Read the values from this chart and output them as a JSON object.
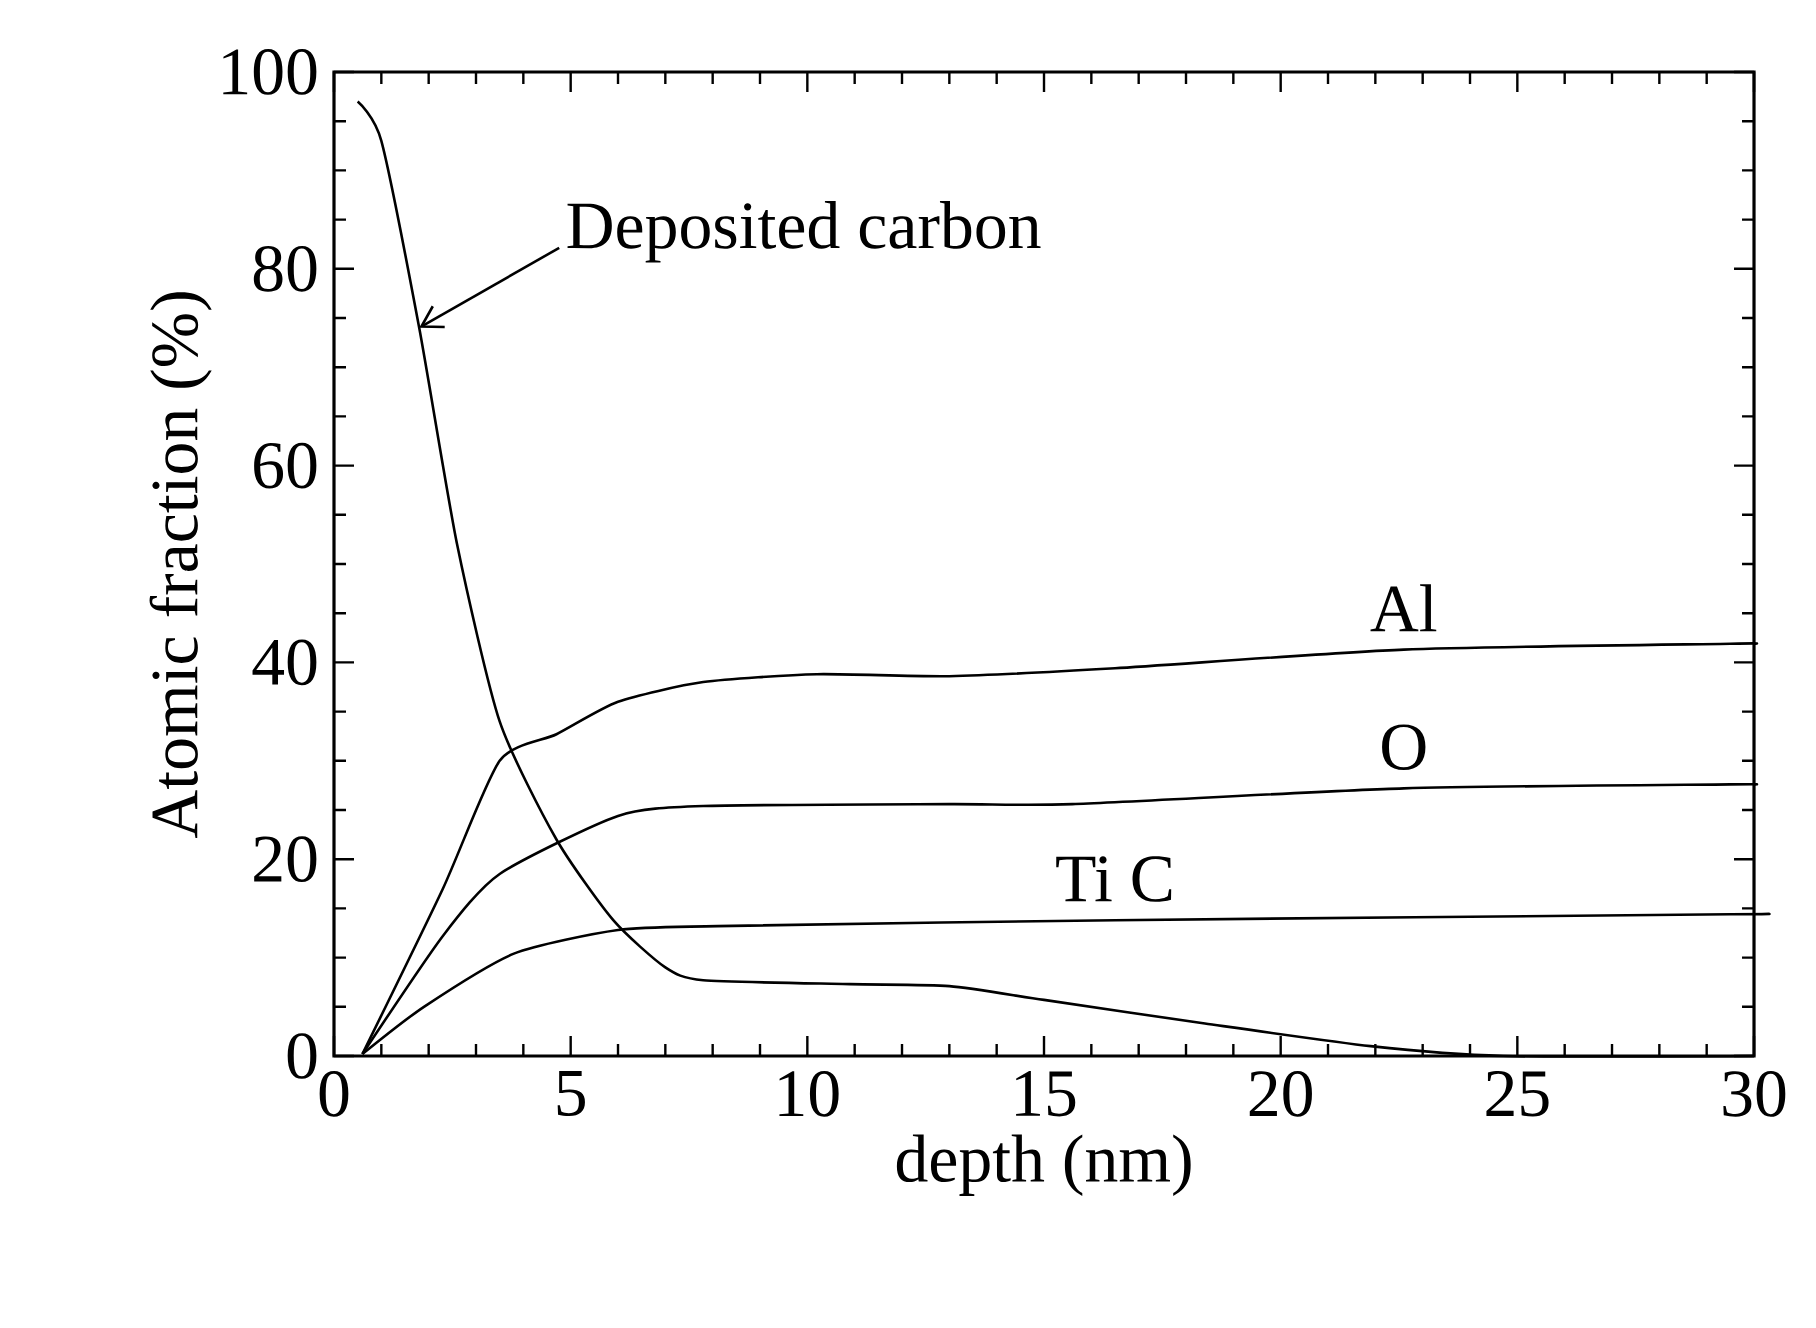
{
  "chart_data": {
    "type": "line",
    "xlabel": "depth (nm)",
    "ylabel": "Atomic fraction (%)",
    "xlim": [
      0,
      30
    ],
    "ylim": [
      0,
      100
    ],
    "xticks": [
      0,
      5,
      10,
      15,
      20,
      25,
      30
    ],
    "yticks": [
      0,
      20,
      40,
      60,
      80,
      100
    ],
    "grid": false,
    "legend": false,
    "marker": "none",
    "line_style": "solid",
    "series": [
      {
        "color": "#000000",
        "x": [
          0.5,
          1,
          1.8,
          2.6,
          3.5,
          4.7,
          5.9,
          7,
          7.8,
          10.9,
          13,
          15,
          18.4,
          21.9,
          24.7,
          30
        ],
        "values": [
          97,
          93,
          74,
          52,
          34,
          22,
          13.8,
          9,
          7.7,
          7.3,
          7.1,
          5.7,
          3.3,
          1,
          0,
          0
        ]
      },
      {
        "name": "Al",
        "color": "#000000",
        "x": [
          0.6,
          2.3,
          3.5,
          4.7,
          6,
          7.8,
          10.2,
          13,
          16.5,
          22.6,
          29.5,
          30
        ],
        "values": [
          0.2,
          17,
          30,
          32.7,
          36,
          38,
          38.8,
          38.6,
          39.4,
          41.3,
          41.9,
          41.9
        ]
      },
      {
        "name": "O",
        "color": "#000000",
        "x": [
          0.6,
          2.3,
          3.5,
          6,
          7.8,
          13,
          15.6,
          22.6,
          29.5,
          30
        ],
        "values": [
          0.2,
          12.2,
          18.5,
          24.4,
          25.4,
          25.6,
          25.6,
          27.2,
          27.6,
          27.6
        ]
      },
      {
        "name": "Ti  C",
        "color": "#000000",
        "x": [
          0.6,
          1.9,
          3.8,
          6,
          8.1,
          16.5,
          29.5,
          30
        ],
        "values": [
          0.2,
          5,
          10.4,
          12.8,
          13.2,
          13.8,
          14.4,
          14.4
        ]
      }
    ],
    "annotations": [
      {
        "text": "Deposited carbon",
        "x": 1.8,
        "y": 74
      }
    ]
  }
}
